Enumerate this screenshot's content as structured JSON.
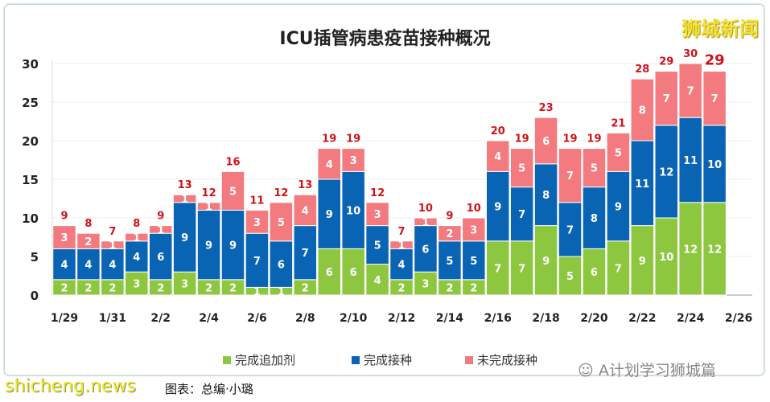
{
  "title": "ICU插管病患疫苗接种概况",
  "brand": "狮城新闻",
  "watermark_site": "shicheng.news",
  "watermark_account": "A计划学习狮城篇",
  "caption": "图表：总编·小璐",
  "chart_data": {
    "type": "bar",
    "stacked": true,
    "title": "ICU插管病患疫苗接种概况",
    "ylim": [
      0,
      30
    ],
    "yticks": [
      0,
      5,
      10,
      15,
      20,
      25,
      30
    ],
    "categories": [
      "1/29",
      "1/30",
      "1/31",
      "2/1",
      "2/2",
      "2/3",
      "2/4",
      "2/5",
      "2/6",
      "2/7",
      "2/8",
      "2/9",
      "2/10",
      "2/11",
      "2/12",
      "2/13",
      "2/14",
      "2/15",
      "2/16",
      "2/17",
      "2/18",
      "2/19",
      "2/20",
      "2/21",
      "2/22",
      "2/23",
      "2/24",
      "2/25"
    ],
    "xtick_labels": [
      "1/29",
      "1/31",
      "2/2",
      "2/4",
      "2/6",
      "2/8",
      "2/10",
      "2/12",
      "2/14",
      "2/16",
      "2/18",
      "2/20",
      "2/22",
      "2/24",
      "2/26"
    ],
    "legend_position": "bottom",
    "grid": true,
    "series": [
      {
        "name": "完成追加剂",
        "color": "#8dc63f",
        "values": [
          2,
          2,
          2,
          3,
          2,
          3,
          2,
          2,
          1,
          1,
          2,
          6,
          6,
          4,
          2,
          3,
          2,
          2,
          7,
          7,
          9,
          5,
          6,
          7,
          9,
          10,
          12,
          12
        ]
      },
      {
        "name": "完成接种",
        "color": "#0a64b4",
        "values": [
          4,
          4,
          4,
          4,
          6,
          9,
          9,
          9,
          7,
          6,
          7,
          9,
          10,
          5,
          4,
          6,
          5,
          5,
          9,
          7,
          8,
          7,
          8,
          9,
          11,
          12,
          11,
          10
        ]
      },
      {
        "name": "未完成接种",
        "color": "#f37b80",
        "values": [
          3,
          2,
          1,
          1,
          1,
          1,
          1,
          5,
          3,
          5,
          4,
          4,
          3,
          3,
          1,
          1,
          2,
          3,
          4,
          5,
          6,
          7,
          5,
          5,
          8,
          7,
          7,
          7
        ]
      }
    ],
    "totals": [
      9,
      8,
      7,
      8,
      9,
      13,
      12,
      16,
      11,
      12,
      13,
      19,
      19,
      12,
      7,
      10,
      9,
      10,
      20,
      19,
      23,
      19,
      19,
      21,
      28,
      29,
      30,
      29
    ],
    "total_color": "#d0121b"
  }
}
